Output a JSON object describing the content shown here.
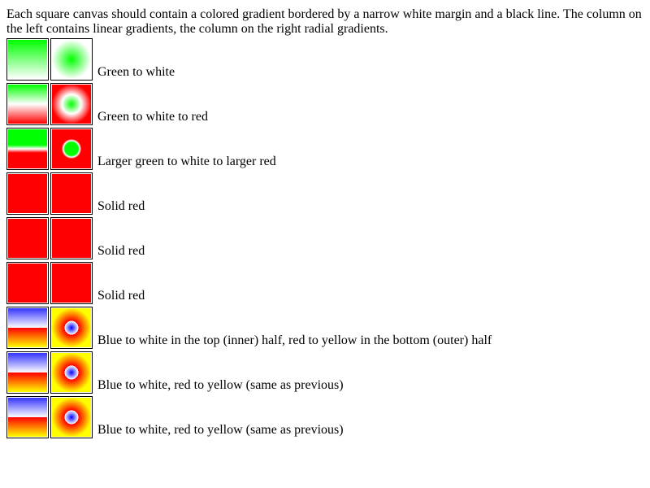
{
  "intro_text": "Each square canvas should contain a colored gradient bordered by a narrow white margin and a black line. The column on the left contains linear gradients, the column on the right radial gradients.",
  "rows": [
    {
      "caption": "Green to white",
      "linear": "linear-gradient(to bottom, #00ff00 0%, #ffffff 100%)",
      "radial": "radial-gradient(circle at center, #00ff00 0%, #ffffff 71%)"
    },
    {
      "caption": "Green to white to red",
      "linear": "linear-gradient(to bottom, #00ff00 0%, #ffffff 50%, #ff0000 100%)",
      "radial": "radial-gradient(circle at center, #00ff00 0%, #ffffff 35%, #ff0000 71%)"
    },
    {
      "caption": "Larger green to white to larger red",
      "linear": "linear-gradient(to bottom, #00ff00 0%, #00ff00 40%, #ffffff 50%, #ff0000 60%, #ff0000 100%)",
      "radial": "radial-gradient(circle at center, #00ff00 0%, #00ff00 24%, #ffffff 30%, #ff0000 36%, #ff0000 100%)"
    },
    {
      "caption": "Solid red",
      "linear": "#ff0000",
      "radial": "#ff0000"
    },
    {
      "caption": "Solid red",
      "linear": "#ff0000",
      "radial": "#ff0000"
    },
    {
      "caption": "Solid red",
      "linear": "#ff0000",
      "radial": "#ff0000"
    },
    {
      "caption": "Blue to white in the top (inner) half, red to yellow in the bottom (outer) half",
      "linear": "linear-gradient(to bottom, #3333ff 0%, #ffffff 50%, #ff0000 50%, #ffff00 100%)",
      "radial": "radial-gradient(circle at center, #0000ff 0%, #ffffff 25%, #ff0000 25%, #ffff00 71%)"
    },
    {
      "caption": "Blue to white, red to yellow (same as previous)",
      "linear": "linear-gradient(to bottom, #3333ff 0%, #ffffff 50%, #ff0000 50%, #ffff00 100%)",
      "radial": "radial-gradient(circle at center, #0000ff 0%, #ffffff 25%, #ff0000 25%, #ffff00 71%)"
    },
    {
      "caption": "Blue to white, red to yellow (same as previous)",
      "linear": "linear-gradient(to bottom, #3333ff 0%, #ffffff 50%, #ff0000 50%, #ffff00 100%)",
      "radial": "radial-gradient(circle at center, #0000ff 0%, #ffffff 25%, #ff0000 25%, #ffff00 71%)"
    }
  ]
}
